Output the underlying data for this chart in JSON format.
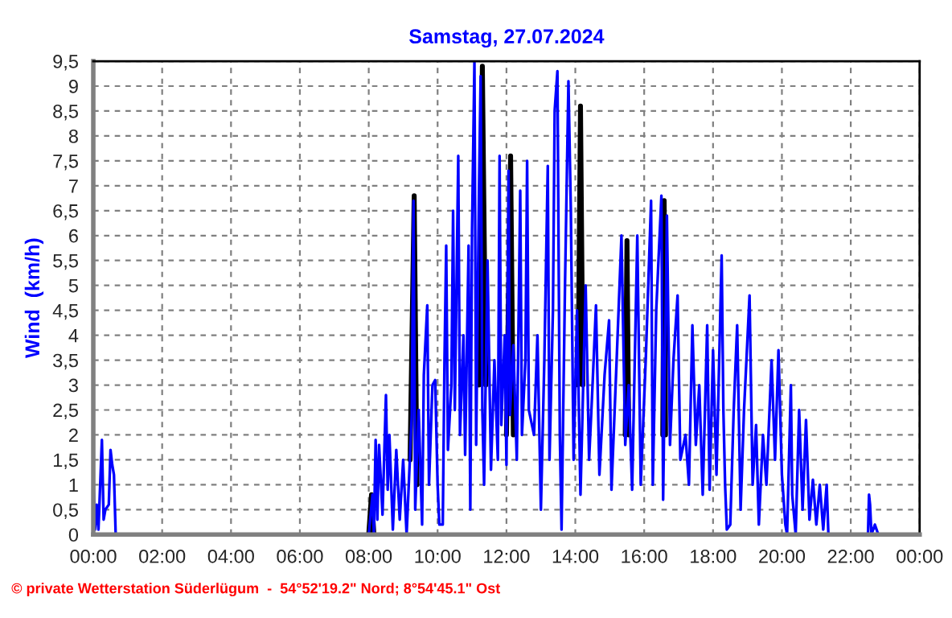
{
  "chart_data": {
    "type": "line",
    "title": "Samstag, 27.07.2024",
    "ylabel": "Wind  (km/h)",
    "annotations": [
      "© private Wetterstation Süderlügum  -  54°52'19.2\" Nord; 8°54'45.1\" Ost"
    ],
    "xlim": [
      0,
      24
    ],
    "xticks": [
      {
        "value": 0,
        "label": "00:00"
      },
      {
        "value": 2,
        "label": "02:00"
      },
      {
        "value": 4,
        "label": "04:00"
      },
      {
        "value": 6,
        "label": "06:00"
      },
      {
        "value": 8,
        "label": "08:00"
      },
      {
        "value": 10,
        "label": "10:00"
      },
      {
        "value": 12,
        "label": "12:00"
      },
      {
        "value": 14,
        "label": "14:00"
      },
      {
        "value": 16,
        "label": "16:00"
      },
      {
        "value": 18,
        "label": "18:00"
      },
      {
        "value": 20,
        "label": "20:00"
      },
      {
        "value": 22,
        "label": "22:00"
      },
      {
        "value": 24,
        "label": "00:00"
      }
    ],
    "ylim": [
      0,
      9.5
    ],
    "yticks": [
      0,
      {
        "value": 0.5,
        "label": "0,5"
      },
      1,
      {
        "value": 1.5,
        "label": "1,5"
      },
      2,
      {
        "value": 2.5,
        "label": "2,5"
      },
      3,
      {
        "value": 3.5,
        "label": "3,5"
      },
      4,
      {
        "value": 4.5,
        "label": "4,5"
      },
      5,
      {
        "value": 5.5,
        "label": "5,5"
      },
      6,
      {
        "value": 6.5,
        "label": "6,5"
      },
      7,
      {
        "value": 7.5,
        "label": "7,5"
      },
      8,
      {
        "value": 8.5,
        "label": "8,5"
      },
      9,
      {
        "value": 9.5,
        "label": "9,5"
      }
    ],
    "grid": true,
    "marker": "none",
    "line_style": "solid",
    "series": [
      {
        "color": "#000000",
        "x": [
          8.0,
          8.08,
          8.15,
          8.6,
          9.2,
          9.32,
          9.4,
          10.5,
          11.2,
          11.3,
          11.4,
          11.7,
          12.0,
          12.12,
          12.2,
          13.0,
          14.08,
          14.15,
          14.22,
          15.0,
          15.45,
          15.5,
          15.55,
          16.1,
          16.54,
          16.58,
          16.62
        ],
        "values": [
          0,
          0.8,
          0,
          null,
          1.5,
          6.8,
          1.0,
          null,
          3,
          9.4,
          3,
          null,
          2,
          7.6,
          2,
          null,
          3,
          8.6,
          3,
          null,
          2,
          5.9,
          2,
          null,
          2,
          6.7,
          2
        ]
      },
      {
        "color": "#0000ff",
        "x": [
          0,
          0.05,
          0.1,
          0.15,
          0.25,
          0.3,
          0.35,
          0.45,
          0.5,
          0.55,
          0.6,
          0.65,
          8.0,
          8.11,
          8.15,
          8.2,
          8.25,
          8.3,
          8.4,
          8.5,
          8.55,
          8.6,
          8.7,
          8.8,
          8.9,
          9.0,
          9.1,
          9.25,
          9.3,
          9.35,
          9.45,
          9.55,
          9.6,
          9.7,
          9.75,
          9.85,
          9.93,
          10.0,
          10.05,
          10.15,
          10.2,
          10.25,
          10.3,
          10.4,
          10.45,
          10.5,
          10.55,
          10.6,
          10.65,
          10.75,
          10.8,
          10.9,
          10.95,
          11.0,
          11.07,
          11.12,
          11.2,
          11.25,
          11.3,
          11.35,
          11.45,
          11.55,
          11.65,
          11.75,
          11.8,
          11.85,
          11.95,
          12.0,
          12.06,
          12.1,
          12.2,
          12.3,
          12.4,
          12.45,
          12.55,
          12.6,
          12.65,
          12.8,
          12.9,
          13.0,
          13.1,
          13.2,
          13.25,
          13.35,
          13.4,
          13.48,
          13.55,
          13.6,
          13.7,
          13.8,
          13.87,
          13.95,
          14.05,
          14.15,
          14.3,
          14.4,
          14.5,
          14.6,
          14.7,
          14.85,
          14.98,
          15.05,
          15.2,
          15.34,
          15.45,
          15.55,
          15.65,
          15.8,
          15.9,
          16.05,
          16.2,
          16.25,
          16.35,
          16.5,
          16.55,
          16.66,
          16.75,
          16.85,
          16.97,
          17.05,
          17.2,
          17.3,
          17.4,
          17.5,
          17.6,
          17.7,
          17.83,
          17.9,
          18.0,
          18.1,
          18.25,
          18.3,
          18.35,
          18.4,
          18.5,
          18.6,
          18.7,
          18.8,
          18.9,
          19.06,
          19.15,
          19.25,
          19.33,
          19.45,
          19.55,
          19.7,
          19.8,
          19.9,
          20.0,
          20.1,
          20.15,
          20.26,
          20.3,
          20.4,
          20.5,
          20.6,
          20.7,
          20.8,
          20.9,
          21.0,
          21.1,
          21.2,
          21.3,
          21.35,
          22.5,
          22.53,
          22.56,
          22.6,
          22.7,
          22.8,
          24
        ],
        "values": [
          1.2,
          0.1,
          0.6,
          0.1,
          1.9,
          0.3,
          0.5,
          0.6,
          1.7,
          1.4,
          1.2,
          0,
          0,
          0.8,
          0,
          1.9,
          0.3,
          1.8,
          0.4,
          2.8,
          0.9,
          2.0,
          0.1,
          1.7,
          0.3,
          1.5,
          0,
          2.4,
          6.7,
          0.5,
          2.5,
          0.2,
          3.2,
          4.6,
          1.0,
          3.0,
          3.1,
          1.0,
          0.2,
          0.2,
          3.5,
          5.8,
          1.7,
          3.0,
          6.5,
          2.5,
          5.0,
          7.6,
          2.0,
          4.0,
          1.6,
          5.8,
          0.5,
          6.1,
          9.5,
          1.8,
          6.8,
          9.2,
          2.5,
          1.0,
          5.5,
          1.3,
          3.5,
          1.5,
          7.6,
          2.2,
          4.0,
          1.4,
          7.3,
          2.4,
          3.8,
          1.5,
          6.9,
          2.0,
          3.5,
          7.5,
          2.5,
          2.0,
          4.0,
          0.5,
          3.5,
          7.4,
          1.5,
          4.5,
          8.5,
          9.3,
          2.0,
          0.1,
          5.0,
          9.1,
          6.5,
          1.5,
          4.5,
          0.8,
          5.0,
          1.5,
          3.0,
          4.6,
          1.2,
          3.2,
          4.3,
          0.9,
          3.5,
          6.0,
          1.8,
          3.0,
          0.9,
          6.0,
          1.0,
          3.6,
          6.7,
          1.0,
          4.5,
          6.8,
          0.7,
          6.4,
          1.8,
          3.5,
          4.8,
          1.5,
          2.0,
          1.0,
          4.2,
          1.8,
          3.0,
          0.8,
          4.2,
          0.9,
          3.7,
          1.2,
          5.6,
          2.5,
          1.0,
          0.1,
          0.2,
          2.5,
          4.2,
          0.5,
          2.5,
          4.8,
          1.0,
          2.2,
          0.2,
          2.0,
          1.0,
          3.5,
          1.5,
          3.7,
          1.2,
          0.2,
          0,
          3.0,
          0.8,
          0,
          2.5,
          0.5,
          2.3,
          0.3,
          1.1,
          0.2,
          1.0,
          0.1,
          1.0,
          0,
          0,
          0.8,
          0.6,
          0,
          0.2,
          0,
          0
        ]
      }
    ]
  }
}
